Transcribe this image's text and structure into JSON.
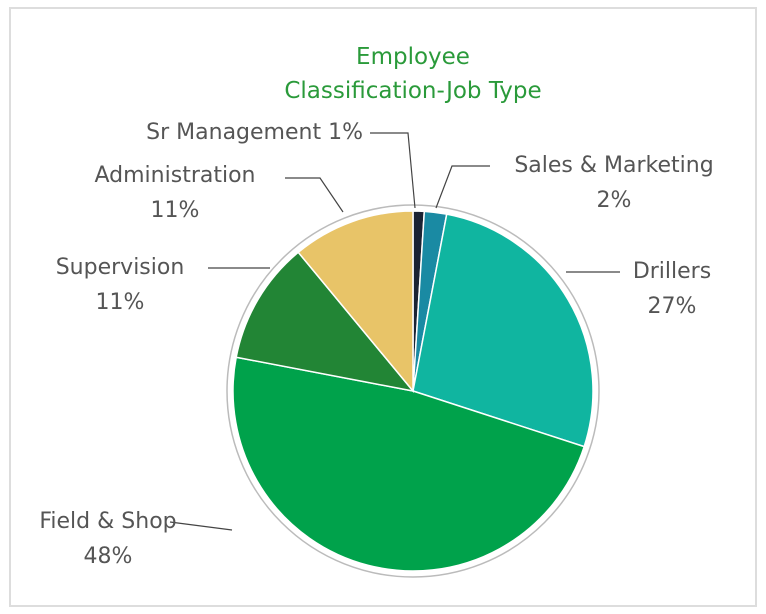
{
  "chart_data": {
    "type": "pie",
    "title": "Employee Classification-Job Type",
    "categories": [
      "Sr Management",
      "Sales & Marketing",
      "Drillers",
      "Field & Shop",
      "Supervision",
      "Administration"
    ],
    "values": [
      1,
      2,
      27,
      48,
      11,
      11
    ],
    "value_labels": [
      "1%",
      "2%",
      "27%",
      "48%",
      "11%",
      "11%"
    ],
    "colors": [
      "#1b2333",
      "#1a8aa3",
      "#10b5a0",
      "#00a24b",
      "#228535",
      "#e8c468"
    ]
  }
}
